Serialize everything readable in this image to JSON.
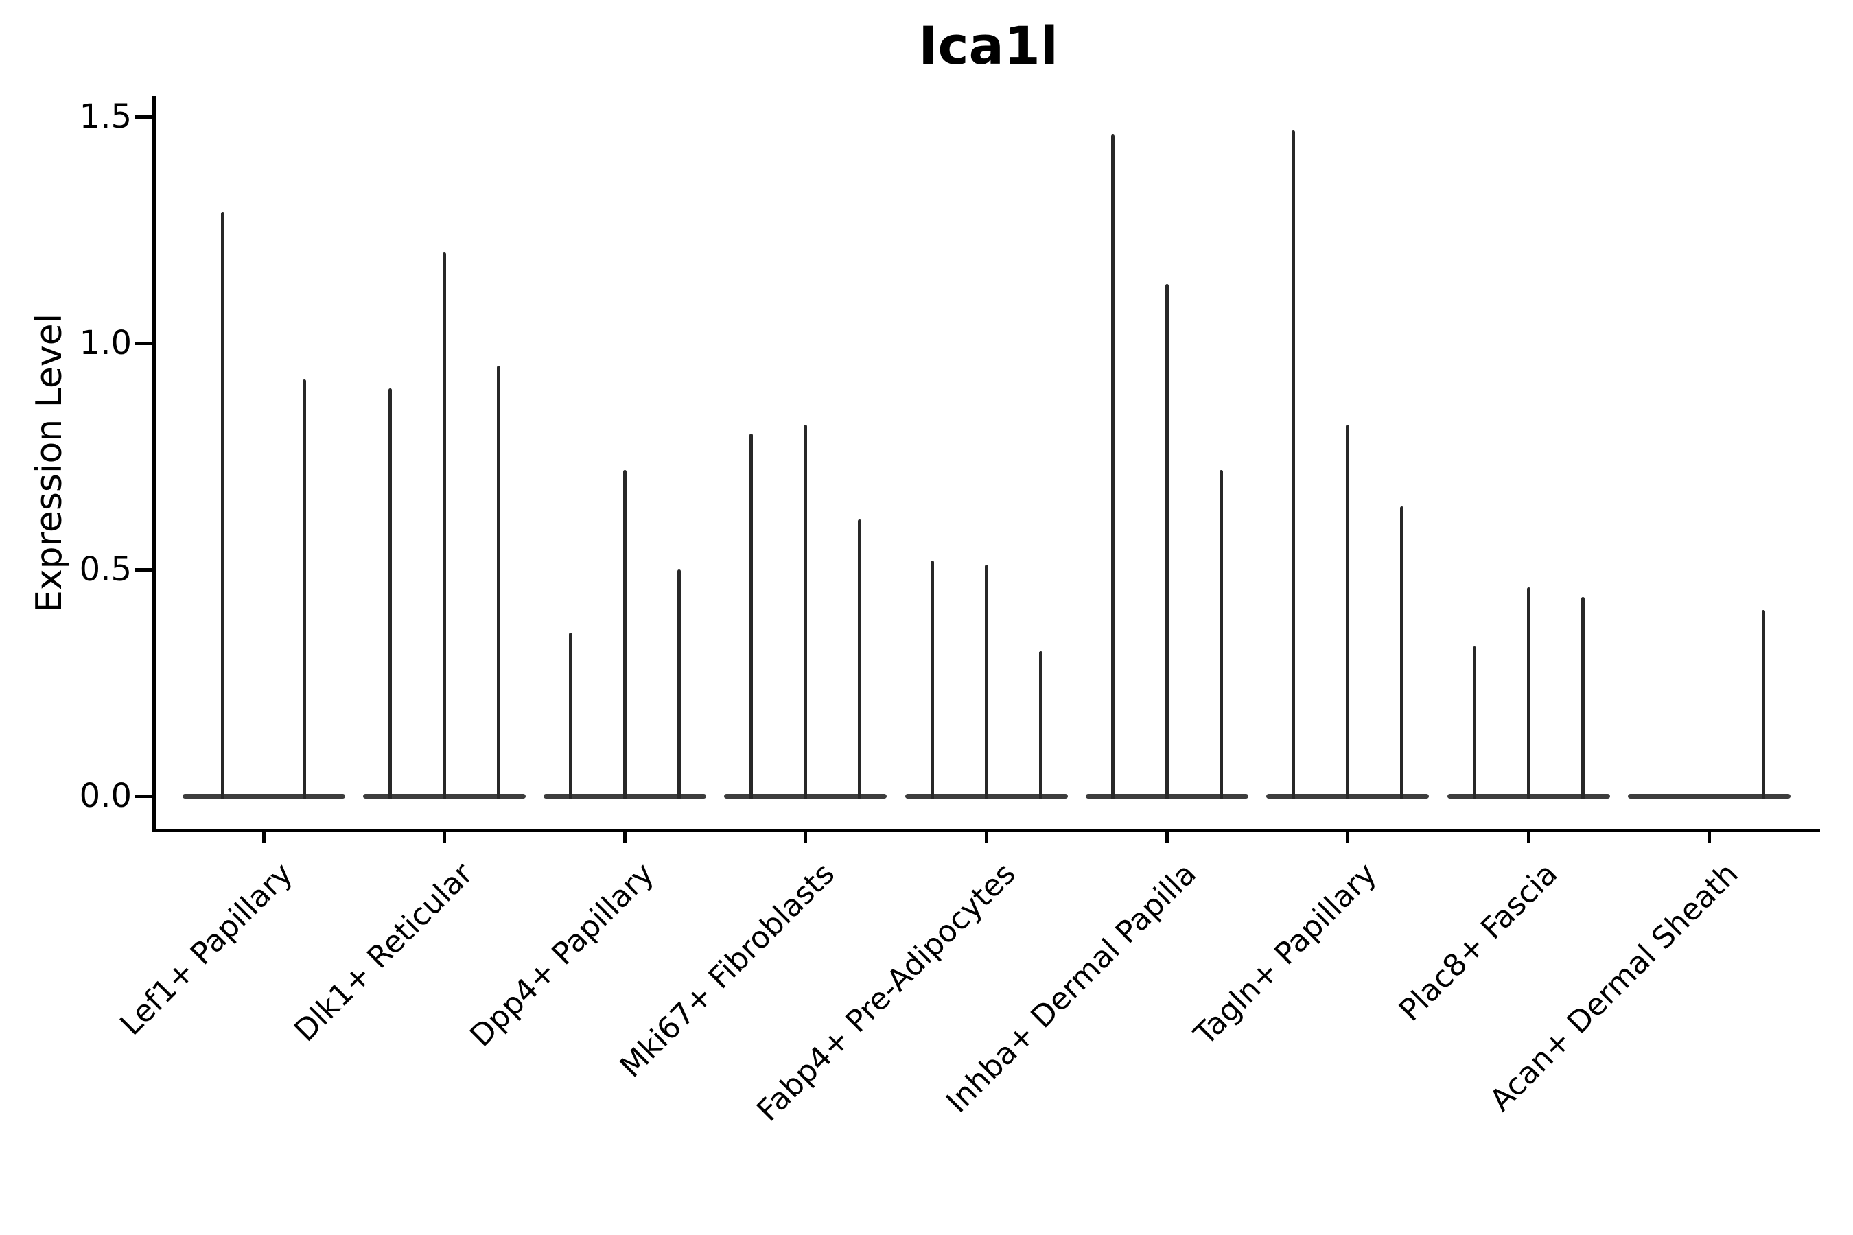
{
  "title": "Ica1l",
  "chart_data": {
    "type": "violin",
    "title": "Ica1l",
    "ylabel": "Expression Level",
    "xlabel": "",
    "ytick_labels": [
      "0.0",
      "0.5",
      "1.0",
      "1.5"
    ],
    "ytick_values": [
      0.0,
      0.5,
      1.0,
      1.5
    ],
    "ylim": [
      -0.08,
      1.55
    ],
    "grid": false,
    "legend": "none",
    "note": "Seurat/scanpy-style stacked violin plot; each category holds 2-3 width-collapsed violins that render as a flat base at 0 with a thin spike up to the max expression value; null means a fully flat violin with no spike.",
    "categories": [
      "Lef1+ Papillary",
      "Dlk1+ Reticular",
      "Dpp4+ Papillary",
      "Mki67+ Fibroblasts",
      "Fabp4+ Pre-Adipocytes",
      "Inhba+ Dermal Papilla",
      "Tagln+ Papillary",
      "Plac8+ Fascia",
      "Acan+ Dermal Sheath"
    ],
    "groups": [
      {
        "category": "Lef1+ Papillary",
        "violin_maxima": [
          1.29,
          0.92
        ]
      },
      {
        "category": "Dlk1+ Reticular",
        "violin_maxima": [
          0.9,
          1.2,
          0.95
        ]
      },
      {
        "category": "Dpp4+ Papillary",
        "violin_maxima": [
          0.36,
          0.72,
          0.5
        ]
      },
      {
        "category": "Mki67+ Fibroblasts",
        "violin_maxima": [
          0.8,
          0.82,
          0.61
        ]
      },
      {
        "category": "Fabp4+ Pre-Adipocytes",
        "violin_maxima": [
          0.52,
          0.51,
          0.32
        ]
      },
      {
        "category": "Inhba+ Dermal Papilla",
        "violin_maxima": [
          1.46,
          1.13,
          0.72
        ]
      },
      {
        "category": "Tagln+ Papillary",
        "violin_maxima": [
          1.47,
          0.82,
          0.64
        ]
      },
      {
        "category": "Plac8+ Fascia",
        "violin_maxima": [
          0.33,
          0.46,
          0.44
        ]
      },
      {
        "category": "Acan+ Dermal Sheath",
        "violin_maxima": [
          null,
          null,
          0.41
        ]
      }
    ],
    "colors": {
      "spike": "#282828",
      "violin_base": "#3d3d3d",
      "axis": "#000000",
      "text": "#000000",
      "background": "#ffffff"
    }
  }
}
